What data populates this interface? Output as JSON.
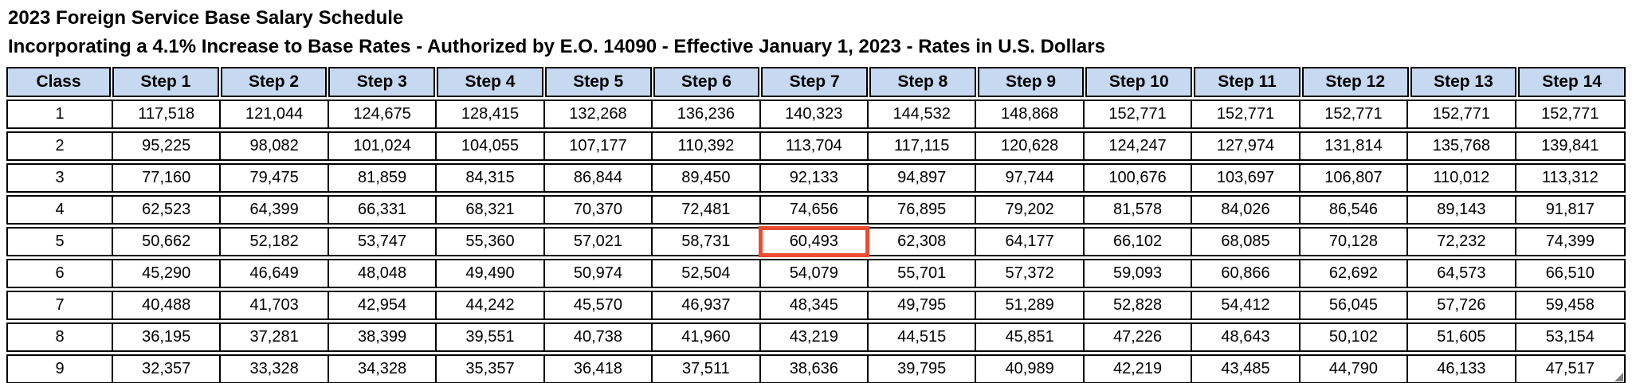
{
  "title": "2023 Foreign Service Base Salary Schedule",
  "subtitle": "Incorporating a 4.1% Increase to Base Rates - Authorized by E.O. 14090 - Effective January 1, 2023 - Rates in U.S. Dollars",
  "table": {
    "headers": [
      "Class",
      "Step 1",
      "Step 2",
      "Step 3",
      "Step 4",
      "Step 5",
      "Step 6",
      "Step 7",
      "Step 8",
      "Step 9",
      "Step 10",
      "Step 11",
      "Step 12",
      "Step 13",
      "Step 14"
    ],
    "rows": [
      {
        "class": "1",
        "values": [
          "117,518",
          "121,044",
          "124,675",
          "128,415",
          "132,268",
          "136,236",
          "140,323",
          "144,532",
          "148,868",
          "152,771",
          "152,771",
          "152,771",
          "152,771",
          "152,771"
        ]
      },
      {
        "class": "2",
        "values": [
          "95,225",
          "98,082",
          "101,024",
          "104,055",
          "107,177",
          "110,392",
          "113,704",
          "117,115",
          "120,628",
          "124,247",
          "127,974",
          "131,814",
          "135,768",
          "139,841"
        ]
      },
      {
        "class": "3",
        "values": [
          "77,160",
          "79,475",
          "81,859",
          "84,315",
          "86,844",
          "89,450",
          "92,133",
          "94,897",
          "97,744",
          "100,676",
          "103,697",
          "106,807",
          "110,012",
          "113,312"
        ]
      },
      {
        "class": "4",
        "values": [
          "62,523",
          "64,399",
          "66,331",
          "68,321",
          "70,370",
          "72,481",
          "74,656",
          "76,895",
          "79,202",
          "81,578",
          "84,026",
          "86,546",
          "89,143",
          "91,817"
        ]
      },
      {
        "class": "5",
        "values": [
          "50,662",
          "52,182",
          "53,747",
          "55,360",
          "57,021",
          "58,731",
          "60,493",
          "62,308",
          "64,177",
          "66,102",
          "68,085",
          "70,128",
          "72,232",
          "74,399"
        ]
      },
      {
        "class": "6",
        "values": [
          "45,290",
          "46,649",
          "48,048",
          "49,490",
          "50,974",
          "52,504",
          "54,079",
          "55,701",
          "57,372",
          "59,093",
          "60,866",
          "62,692",
          "64,573",
          "66,510"
        ]
      },
      {
        "class": "7",
        "values": [
          "40,488",
          "41,703",
          "42,954",
          "44,242",
          "45,570",
          "46,937",
          "48,345",
          "49,795",
          "51,289",
          "52,828",
          "54,412",
          "56,045",
          "57,726",
          "59,458"
        ]
      },
      {
        "class": "8",
        "values": [
          "36,195",
          "37,281",
          "38,399",
          "39,551",
          "40,738",
          "41,960",
          "43,219",
          "44,515",
          "45,851",
          "47,226",
          "48,643",
          "50,102",
          "51,605",
          "53,154"
        ]
      },
      {
        "class": "9",
        "values": [
          "32,357",
          "33,328",
          "34,328",
          "35,357",
          "36,418",
          "37,511",
          "38,636",
          "39,795",
          "40,989",
          "42,219",
          "43,485",
          "44,790",
          "46,133",
          "47,517"
        ]
      }
    ],
    "highlight": {
      "class": "5",
      "step": "Step 7",
      "value": "60,493",
      "row_index": 4,
      "col_index": 7
    },
    "corner_icon": "resize-handle-icon"
  },
  "colors": {
    "header_bg": "#C6D9F1",
    "grid_border": "#000000",
    "highlight_border": "#EA4B31",
    "resize_handle": "#7F7F7F"
  }
}
